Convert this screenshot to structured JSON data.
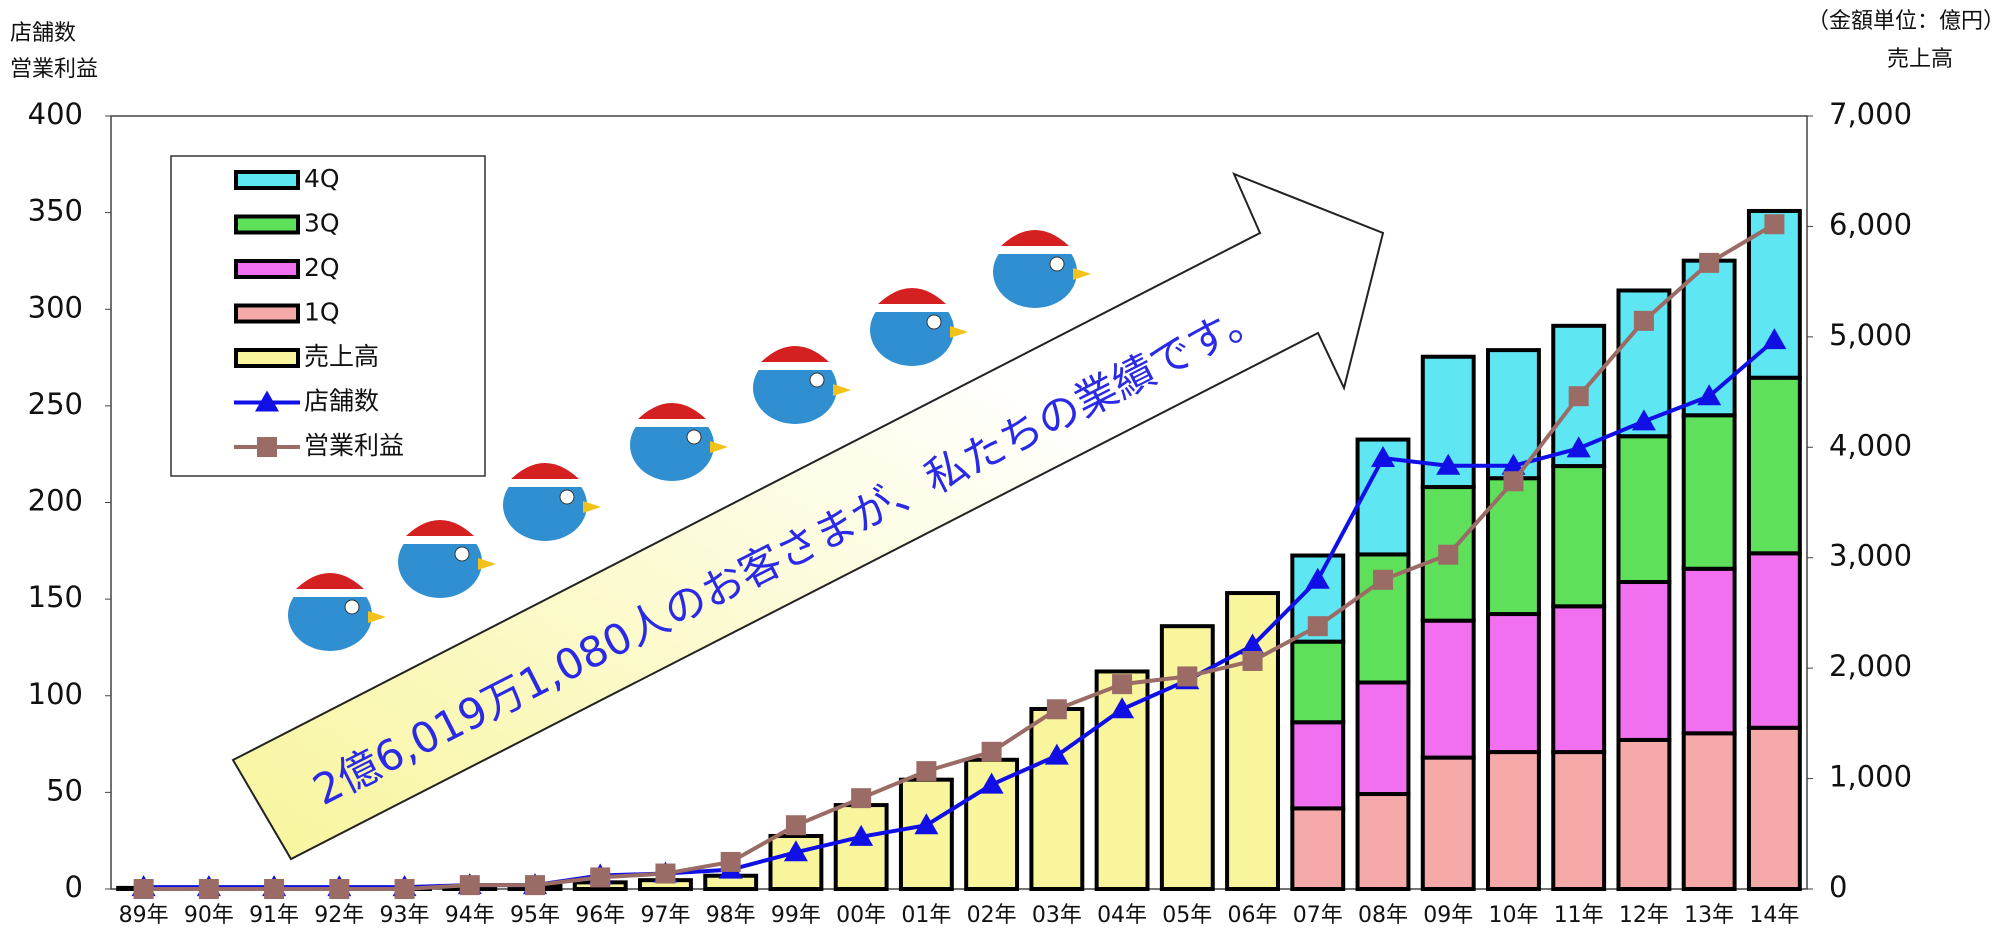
{
  "chart_data": {
    "type": "bar",
    "y_label": [
      "店舗数",
      "営業利益"
    ],
    "y2_note": "（金額単位：億円）",
    "y2_label": "売上高",
    "annotation": "2億6,019万1,080人のお客さまが、私たちの業績です。",
    "categories": [
      "89年",
      "90年",
      "91年",
      "92年",
      "93年",
      "94年",
      "95年",
      "96年",
      "97年",
      "98年",
      "99年",
      "00年",
      "01年",
      "02年",
      "03年",
      "04年",
      "05年",
      "06年",
      "07年",
      "08年",
      "09年",
      "10年",
      "11年",
      "12年",
      "13年",
      "14年"
    ],
    "ylim": [
      0,
      400
    ],
    "yticks": [
      0,
      50,
      100,
      150,
      200,
      250,
      300,
      350,
      400
    ],
    "y2lim": [
      0,
      7000
    ],
    "y2ticks": [
      0,
      {
        "value": 1000,
        "label": "1,000"
      },
      {
        "value": 2000,
        "label": "2,000"
      },
      {
        "value": 3000,
        "label": "3,000"
      },
      {
        "value": 4000,
        "label": "4,000"
      },
      {
        "value": 5000,
        "label": "5,000"
      },
      {
        "value": 6000,
        "label": "6,000"
      },
      {
        "value": 7000,
        "label": "7,000"
      }
    ],
    "series": [
      {
        "name": "4Q",
        "type": "bar",
        "axis": "y2",
        "color": "#5ee6f3",
        "values": [
          null,
          null,
          null,
          null,
          null,
          null,
          null,
          null,
          null,
          null,
          null,
          null,
          null,
          null,
          null,
          null,
          null,
          null,
          780,
          1040,
          1180,
          1160,
          1270,
          1320,
          1400,
          1510
        ]
      },
      {
        "name": "3Q",
        "type": "bar",
        "axis": "y2",
        "color": "#5fe05b",
        "values": [
          null,
          null,
          null,
          null,
          null,
          null,
          null,
          null,
          null,
          null,
          null,
          null,
          null,
          null,
          null,
          null,
          null,
          null,
          730,
          1160,
          1210,
          1230,
          1270,
          1320,
          1390,
          1590
        ]
      },
      {
        "name": "2Q",
        "type": "bar",
        "axis": "y2",
        "color": "#f070f0",
        "values": [
          null,
          null,
          null,
          null,
          null,
          null,
          null,
          null,
          null,
          null,
          null,
          null,
          null,
          null,
          null,
          null,
          null,
          null,
          780,
          1010,
          1240,
          1250,
          1320,
          1430,
          1490,
          1580
        ]
      },
      {
        "name": "1Q",
        "type": "bar",
        "axis": "y2",
        "color": "#f6a9a9",
        "values": [
          null,
          null,
          null,
          null,
          null,
          null,
          null,
          null,
          null,
          null,
          null,
          null,
          null,
          null,
          null,
          null,
          null,
          null,
          730,
          860,
          1190,
          1240,
          1240,
          1350,
          1410,
          1460
        ]
      },
      {
        "name": "売上高",
        "type": "bar",
        "axis": "y2",
        "color": "#f8f59c",
        "values": [
          10,
          10,
          10,
          10,
          10,
          20,
          30,
          60,
          80,
          120,
          480,
          760,
          990,
          1170,
          1630,
          1970,
          2380,
          2680,
          null,
          null,
          null,
          null,
          null,
          null,
          null,
          null
        ]
      },
      {
        "name": "店舗数",
        "type": "line",
        "marker": "triangle",
        "color": "#1010e6",
        "values": [
          1,
          1,
          1,
          1,
          1,
          2,
          2,
          7,
          8,
          10,
          19,
          27,
          33,
          54,
          69,
          93,
          108,
          126,
          160,
          223,
          219,
          219,
          228,
          242,
          255,
          284
        ]
      },
      {
        "name": "営業利益",
        "type": "line",
        "marker": "square",
        "color": "#9b6b66",
        "values": [
          0,
          0,
          0,
          0,
          0,
          2,
          2,
          6,
          8,
          14,
          33,
          47,
          61,
          71,
          93,
          106,
          110,
          118,
          136,
          160,
          173,
          211,
          255,
          294,
          324,
          344
        ]
      }
    ]
  }
}
